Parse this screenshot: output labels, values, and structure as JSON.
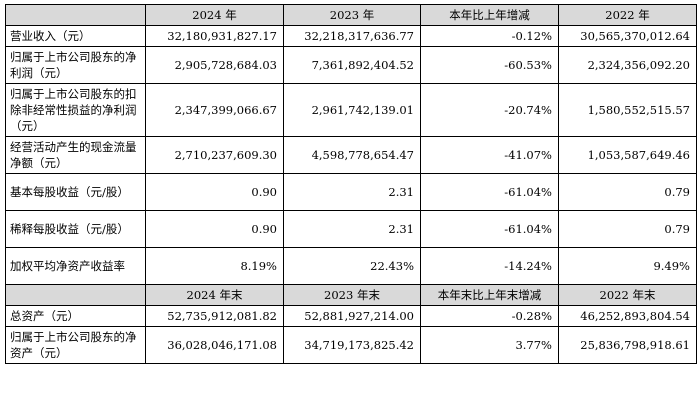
{
  "header1": [
    "",
    "2024 年",
    "2023 年",
    "本年比上年增减",
    "2022 年"
  ],
  "rows1": [
    {
      "label": "营业收入（元）",
      "values": [
        "32,180,931,827.17",
        "32,218,317,636.77",
        "-0.12%",
        "30,565,370,012.64"
      ]
    },
    {
      "label": "归属于上市公司股东的净利润（元）",
      "values": [
        "2,905,728,684.03",
        "7,361,892,404.52",
        "-60.53%",
        "2,324,356,092.20"
      ]
    },
    {
      "label": "归属于上市公司股东的扣除非经常性损益的净利润（元）",
      "values": [
        "2,347,399,066.67",
        "2,961,742,139.01",
        "-20.74%",
        "1,580,552,515.57"
      ]
    },
    {
      "label": "经营活动产生的现金流量净额（元）",
      "values": [
        "2,710,237,609.30",
        "4,598,778,654.47",
        "-41.07%",
        "1,053,587,649.46"
      ]
    },
    {
      "label": "基本每股收益（元/股）",
      "values": [
        "0.90",
        "2.31",
        "-61.04%",
        "0.79"
      ]
    },
    {
      "label": "稀释每股收益（元/股）",
      "values": [
        "0.90",
        "2.31",
        "-61.04%",
        "0.79"
      ]
    },
    {
      "label": "加权平均净资产收益率",
      "values": [
        "8.19%",
        "22.43%",
        "-14.24%",
        "9.49%"
      ]
    }
  ],
  "header2": [
    "",
    "2024 年末",
    "2023 年末",
    "本年末比上年末增减",
    "2022 年末"
  ],
  "rows2": [
    {
      "label": "总资产（元）",
      "values": [
        "52,735,912,081.82",
        "52,881,927,214.00",
        "-0.28%",
        "46,252,893,804.54"
      ]
    },
    {
      "label": "归属于上市公司股东的净资产（元）",
      "values": [
        "36,028,046,171.08",
        "34,719,173,825.42",
        "3.77%",
        "25,836,798,918.61"
      ]
    }
  ]
}
